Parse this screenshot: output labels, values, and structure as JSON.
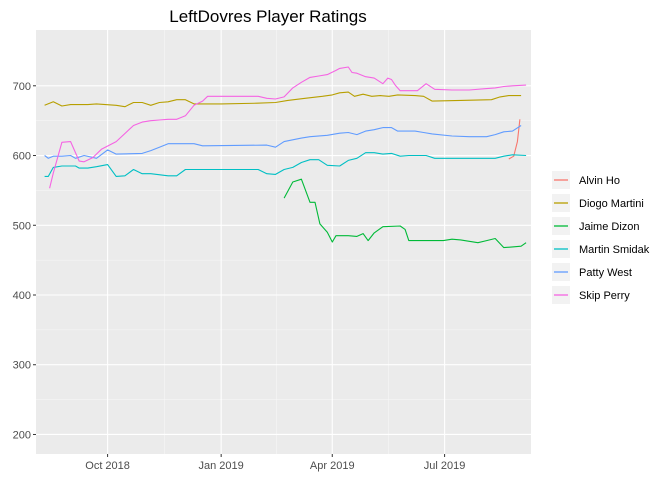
{
  "chart_data": {
    "type": "line",
    "title": "LeftDovres Player Ratings",
    "xlabel": "",
    "ylabel": "",
    "xlim": [
      "2018-08-04",
      "2019-09-09"
    ],
    "ylim": [
      172,
      780
    ],
    "x_ticks": [
      {
        "label": "Oct 2018",
        "date": "2018-10-01"
      },
      {
        "label": "Jan 2019",
        "date": "2019-01-01"
      },
      {
        "label": "Apr 2019",
        "date": "2019-04-01"
      },
      {
        "label": "Jul 2019",
        "date": "2019-07-01"
      }
    ],
    "y_ticks": [
      200,
      300,
      400,
      500,
      600,
      700
    ],
    "grid": true,
    "legend_position": "right",
    "colors": {
      "panel": "#EBEBEB",
      "grid_major": "#FFFFFF",
      "Alvin Ho": "#F8766D",
      "Diogo Martini": "#B79F00",
      "Jaime Dizon": "#00BA38",
      "Martin Smidak": "#00BFC4",
      "Patty West": "#619CFF",
      "Skip Perry": "#F564E3"
    },
    "series": [
      {
        "name": "Alvin Ho",
        "points": [
          [
            "2019-08-22",
            595
          ],
          [
            "2019-08-26",
            599
          ],
          [
            "2019-08-29",
            620
          ],
          [
            "2019-08-31",
            652
          ]
        ]
      },
      {
        "name": "Diogo Martini",
        "points": [
          [
            "2018-08-11",
            672
          ],
          [
            "2018-08-18",
            677
          ],
          [
            "2018-08-25",
            671
          ],
          [
            "2018-09-01",
            673
          ],
          [
            "2018-09-15",
            673
          ],
          [
            "2018-09-22",
            674
          ],
          [
            "2018-10-08",
            672
          ],
          [
            "2018-10-15",
            670
          ],
          [
            "2018-10-22",
            676
          ],
          [
            "2018-10-29",
            676
          ],
          [
            "2018-11-05",
            672
          ],
          [
            "2018-11-12",
            676
          ],
          [
            "2018-11-19",
            677
          ],
          [
            "2018-11-26",
            680
          ],
          [
            "2018-12-03",
            680
          ],
          [
            "2018-12-10",
            674
          ],
          [
            "2019-01-01",
            674
          ],
          [
            "2019-01-30",
            675
          ],
          [
            "2019-02-14",
            676
          ],
          [
            "2019-02-24",
            679
          ],
          [
            "2019-03-10",
            682
          ],
          [
            "2019-03-24",
            685
          ],
          [
            "2019-04-01",
            687
          ],
          [
            "2019-04-07",
            690
          ],
          [
            "2019-04-14",
            691
          ],
          [
            "2019-04-19",
            685
          ],
          [
            "2019-04-26",
            688
          ],
          [
            "2019-05-03",
            685
          ],
          [
            "2019-05-10",
            686
          ],
          [
            "2019-05-17",
            685
          ],
          [
            "2019-05-24",
            687
          ],
          [
            "2019-06-07",
            686
          ],
          [
            "2019-06-14",
            685
          ],
          [
            "2019-06-21",
            678
          ],
          [
            "2019-07-14",
            679
          ],
          [
            "2019-08-08",
            680
          ],
          [
            "2019-08-15",
            684
          ],
          [
            "2019-08-22",
            686
          ],
          [
            "2019-09-01",
            686
          ]
        ]
      },
      {
        "name": "Jaime Dizon",
        "points": [
          [
            "2019-02-21",
            539
          ],
          [
            "2019-02-28",
            562
          ],
          [
            "2019-03-07",
            566
          ],
          [
            "2019-03-14",
            533
          ],
          [
            "2019-03-18",
            533
          ],
          [
            "2019-03-22",
            502
          ],
          [
            "2019-03-28",
            490
          ],
          [
            "2019-04-01",
            476
          ],
          [
            "2019-04-04",
            485
          ],
          [
            "2019-04-14",
            485
          ],
          [
            "2019-04-21",
            484
          ],
          [
            "2019-04-26",
            488
          ],
          [
            "2019-04-30",
            478
          ],
          [
            "2019-05-05",
            489
          ],
          [
            "2019-05-12",
            498
          ],
          [
            "2019-05-26",
            499
          ],
          [
            "2019-05-30",
            494
          ],
          [
            "2019-06-02",
            478
          ],
          [
            "2019-06-30",
            478
          ],
          [
            "2019-07-07",
            480
          ],
          [
            "2019-07-14",
            479
          ],
          [
            "2019-07-28",
            475
          ],
          [
            "2019-08-04",
            478
          ],
          [
            "2019-08-11",
            481
          ],
          [
            "2019-08-18",
            468
          ],
          [
            "2019-08-25",
            469
          ],
          [
            "2019-09-01",
            470
          ],
          [
            "2019-09-05",
            475
          ]
        ]
      },
      {
        "name": "Martin Smidak",
        "points": [
          [
            "2018-08-11",
            570
          ],
          [
            "2018-08-14",
            570
          ],
          [
            "2018-08-18",
            583
          ],
          [
            "2018-08-25",
            585
          ],
          [
            "2018-09-05",
            585
          ],
          [
            "2018-09-08",
            582
          ],
          [
            "2018-09-15",
            582
          ],
          [
            "2018-09-22",
            584
          ],
          [
            "2018-10-01",
            587
          ],
          [
            "2018-10-08",
            570
          ],
          [
            "2018-10-15",
            571
          ],
          [
            "2018-10-22",
            580
          ],
          [
            "2018-10-29",
            574
          ],
          [
            "2018-11-05",
            574
          ],
          [
            "2018-11-19",
            571
          ],
          [
            "2018-11-26",
            571
          ],
          [
            "2018-12-03",
            580
          ],
          [
            "2019-01-31",
            580
          ],
          [
            "2019-02-07",
            574
          ],
          [
            "2019-02-14",
            573
          ],
          [
            "2019-02-21",
            580
          ],
          [
            "2019-02-28",
            583
          ],
          [
            "2019-03-07",
            590
          ],
          [
            "2019-03-14",
            594
          ],
          [
            "2019-03-21",
            594
          ],
          [
            "2019-03-28",
            586
          ],
          [
            "2019-04-07",
            585
          ],
          [
            "2019-04-14",
            593
          ],
          [
            "2019-04-21",
            596
          ],
          [
            "2019-04-28",
            604
          ],
          [
            "2019-05-05",
            604
          ],
          [
            "2019-05-12",
            602
          ],
          [
            "2019-05-19",
            603
          ],
          [
            "2019-05-26",
            599
          ],
          [
            "2019-06-02",
            600
          ],
          [
            "2019-06-16",
            600
          ],
          [
            "2019-06-23",
            596
          ],
          [
            "2019-08-11",
            596
          ],
          [
            "2019-08-18",
            599
          ],
          [
            "2019-08-25",
            601
          ],
          [
            "2019-09-05",
            600
          ]
        ]
      },
      {
        "name": "Patty West",
        "points": [
          [
            "2018-08-11",
            600
          ],
          [
            "2018-08-14",
            596
          ],
          [
            "2018-08-18",
            599
          ],
          [
            "2018-08-25",
            599
          ],
          [
            "2018-09-01",
            600
          ],
          [
            "2018-09-05",
            596
          ],
          [
            "2018-09-12",
            600
          ],
          [
            "2018-09-22",
            596
          ],
          [
            "2018-10-01",
            608
          ],
          [
            "2018-10-08",
            602
          ],
          [
            "2018-10-29",
            603
          ],
          [
            "2018-11-05",
            607
          ],
          [
            "2018-11-12",
            612
          ],
          [
            "2018-11-19",
            617
          ],
          [
            "2018-12-10",
            617
          ],
          [
            "2018-12-17",
            614
          ],
          [
            "2019-02-07",
            615
          ],
          [
            "2019-02-14",
            612
          ],
          [
            "2019-02-21",
            620
          ],
          [
            "2019-03-07",
            625
          ],
          [
            "2019-03-14",
            627
          ],
          [
            "2019-03-28",
            629
          ],
          [
            "2019-04-07",
            632
          ],
          [
            "2019-04-14",
            633
          ],
          [
            "2019-04-21",
            630
          ],
          [
            "2019-04-28",
            635
          ],
          [
            "2019-05-05",
            637
          ],
          [
            "2019-05-12",
            640
          ],
          [
            "2019-05-19",
            640
          ],
          [
            "2019-05-24",
            635
          ],
          [
            "2019-06-07",
            635
          ],
          [
            "2019-06-14",
            633
          ],
          [
            "2019-06-21",
            631
          ],
          [
            "2019-07-07",
            628
          ],
          [
            "2019-07-21",
            627
          ],
          [
            "2019-08-04",
            627
          ],
          [
            "2019-08-11",
            630
          ],
          [
            "2019-08-18",
            634
          ],
          [
            "2019-08-25",
            635
          ],
          [
            "2019-09-01",
            643
          ]
        ]
      },
      {
        "name": "Skip Perry",
        "points": [
          [
            "2018-08-15",
            553
          ],
          [
            "2018-08-18",
            575
          ],
          [
            "2018-08-25",
            619
          ],
          [
            "2018-09-01",
            620
          ],
          [
            "2018-09-08",
            592
          ],
          [
            "2018-09-12",
            591
          ],
          [
            "2018-09-19",
            597
          ],
          [
            "2018-09-26",
            609
          ],
          [
            "2018-10-08",
            620
          ],
          [
            "2018-10-22",
            643
          ],
          [
            "2018-10-29",
            648
          ],
          [
            "2018-11-05",
            650
          ],
          [
            "2018-11-12",
            651
          ],
          [
            "2018-11-19",
            652
          ],
          [
            "2018-11-26",
            652
          ],
          [
            "2018-12-03",
            657
          ],
          [
            "2018-12-10",
            672
          ],
          [
            "2018-12-17",
            678
          ],
          [
            "2018-12-21",
            685
          ],
          [
            "2019-01-31",
            685
          ],
          [
            "2019-02-07",
            682
          ],
          [
            "2019-02-14",
            681
          ],
          [
            "2019-02-21",
            684
          ],
          [
            "2019-02-28",
            697
          ],
          [
            "2019-03-07",
            705
          ],
          [
            "2019-03-14",
            712
          ],
          [
            "2019-03-21",
            714
          ],
          [
            "2019-03-28",
            716
          ],
          [
            "2019-04-04",
            722
          ],
          [
            "2019-04-07",
            725
          ],
          [
            "2019-04-14",
            727
          ],
          [
            "2019-04-17",
            719
          ],
          [
            "2019-04-21",
            718
          ],
          [
            "2019-04-28",
            713
          ],
          [
            "2019-05-05",
            711
          ],
          [
            "2019-05-12",
            703
          ],
          [
            "2019-05-16",
            711
          ],
          [
            "2019-05-19",
            709
          ],
          [
            "2019-05-22",
            701
          ],
          [
            "2019-05-26",
            693
          ],
          [
            "2019-06-09",
            693
          ],
          [
            "2019-06-16",
            703
          ],
          [
            "2019-06-23",
            695
          ],
          [
            "2019-07-07",
            694
          ],
          [
            "2019-07-21",
            694
          ],
          [
            "2019-08-04",
            696
          ],
          [
            "2019-08-11",
            697
          ],
          [
            "2019-08-18",
            699
          ],
          [
            "2019-08-25",
            700
          ],
          [
            "2019-09-05",
            701
          ]
        ]
      }
    ]
  }
}
